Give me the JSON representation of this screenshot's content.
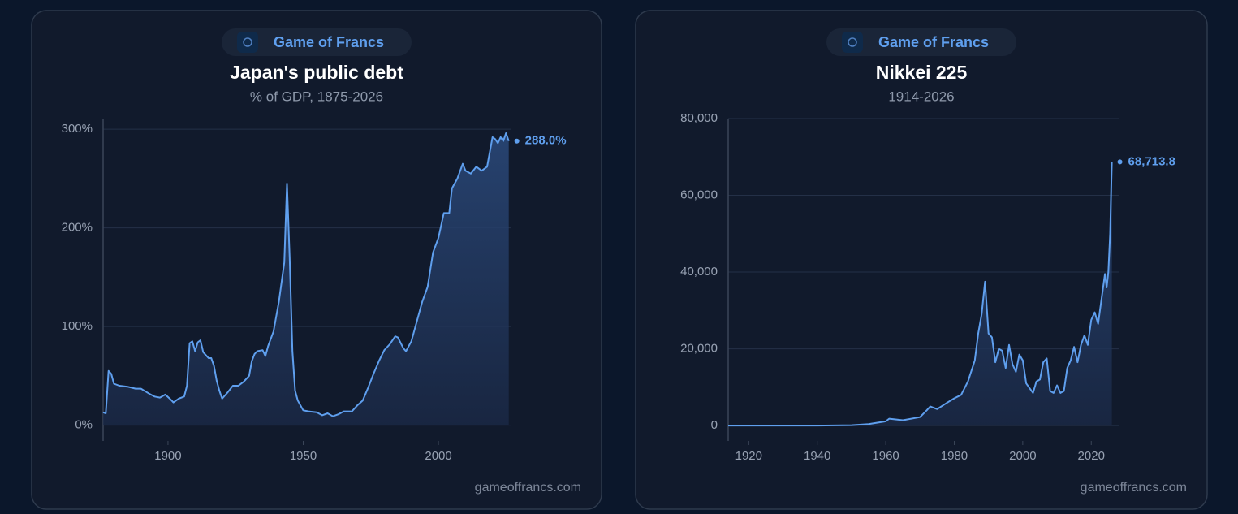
{
  "chart_data": [
    {
      "type": "line",
      "badge": "Game of Francs",
      "title": "Japan's public debt",
      "subtitle": "% of GDP, 1875-2026",
      "source": "gameoffrancs.com",
      "x": [
        1876,
        1877,
        1878,
        1879,
        1880,
        1882,
        1885,
        1888,
        1890,
        1893,
        1895,
        1897,
        1899,
        1901,
        1902,
        1904,
        1906,
        1907,
        1908,
        1909,
        1910,
        1911,
        1912,
        1913,
        1915,
        1916,
        1917,
        1918,
        1919,
        1920,
        1922,
        1924,
        1926,
        1928,
        1930,
        1931,
        1932,
        1933,
        1935,
        1936,
        1937,
        1939,
        1941,
        1943,
        1944,
        1945,
        1946,
        1947,
        1948,
        1950,
        1952,
        1955,
        1957,
        1959,
        1961,
        1963,
        1965,
        1968,
        1970,
        1972,
        1974,
        1976,
        1978,
        1980,
        1982,
        1984,
        1985,
        1987,
        1988,
        1990,
        1992,
        1994,
        1996,
        1998,
        2000,
        2002,
        2004,
        2005,
        2007,
        2009,
        2010,
        2012,
        2014,
        2016,
        2018,
        2020,
        2021,
        2022,
        2023,
        2024,
        2025,
        2026
      ],
      "values": [
        13,
        12,
        55,
        52,
        42,
        40,
        39,
        37,
        37,
        32,
        29,
        28,
        31,
        26,
        23,
        27,
        29,
        40,
        83,
        85,
        75,
        84,
        86,
        74,
        68,
        68,
        60,
        45,
        35,
        27,
        33,
        40,
        40,
        44,
        50,
        65,
        72,
        75,
        76,
        70,
        80,
        95,
        125,
        165,
        245,
        170,
        75,
        35,
        25,
        15,
        14,
        13,
        10,
        12,
        9,
        11,
        14,
        14,
        20,
        25,
        38,
        52,
        65,
        76,
        82,
        90,
        89,
        78,
        75,
        85,
        105,
        125,
        140,
        175,
        190,
        215,
        215,
        240,
        250,
        265,
        258,
        255,
        262,
        258,
        262,
        292,
        290,
        286,
        292,
        288,
        296,
        288
      ],
      "end_label": "288.0%",
      "color": "#5f9fee",
      "xlim": [
        1876,
        2027
      ],
      "ylim": [
        -16,
        310
      ],
      "xticks": [
        1900,
        1950,
        2000
      ],
      "yticks": [
        {
          "value": 0,
          "label": "0%"
        },
        {
          "value": 100,
          "label": "100%"
        },
        {
          "value": 200,
          "label": "200%"
        },
        {
          "value": 300,
          "label": "300%"
        }
      ],
      "grid": true
    },
    {
      "type": "line",
      "badge": "Game of Francs",
      "title": "Nikkei 225",
      "subtitle": "1914-2026",
      "source": "gameoffrancs.com",
      "x": [
        1914,
        1940,
        1950,
        1955,
        1960,
        1961,
        1965,
        1970,
        1972,
        1973,
        1975,
        1978,
        1980,
        1982,
        1984,
        1986,
        1987,
        1988,
        1989,
        1990,
        1991,
        1992,
        1993,
        1994,
        1995,
        1996,
        1997,
        1998,
        1999,
        2000,
        2001,
        2003,
        2004,
        2005,
        2006,
        2007,
        2008,
        2009,
        2010,
        2011,
        2012,
        2013,
        2014,
        2015,
        2016,
        2017,
        2018,
        2019,
        2020,
        2021,
        2022,
        2023,
        2024,
        2024.5,
        2025,
        2025.5,
        2026
      ],
      "values": [
        0,
        0,
        100,
        400,
        1100,
        1800,
        1400,
        2200,
        4000,
        5000,
        4300,
        6000,
        7100,
        8000,
        11500,
        17000,
        24000,
        29000,
        37500,
        24000,
        23000,
        16500,
        20000,
        19500,
        15000,
        21000,
        16000,
        14000,
        18500,
        17000,
        11000,
        8500,
        11500,
        12000,
        16500,
        17500,
        9000,
        8500,
        10500,
        8500,
        9000,
        15000,
        17000,
        20500,
        16500,
        21000,
        23500,
        21000,
        27500,
        29500,
        26500,
        33000,
        39500,
        36000,
        40000,
        50000,
        68713.8
      ],
      "end_label": "68,713.8",
      "color": "#5f9fee",
      "xlim": [
        1914,
        2028
      ],
      "ylim": [
        -4000,
        80000
      ],
      "xticks": [
        1920,
        1940,
        1960,
        1980,
        2000,
        2020
      ],
      "yticks": [
        0,
        {
          "value": 20000,
          "label": "20,000"
        },
        {
          "value": 40000,
          "label": "40,000"
        },
        {
          "value": 60000,
          "label": "60,000"
        },
        {
          "value": 80000,
          "label": "80,000"
        }
      ],
      "grid": true
    }
  ]
}
